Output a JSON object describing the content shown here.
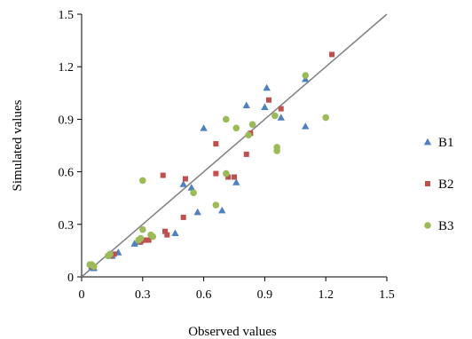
{
  "chart_data": {
    "type": "scatter",
    "xlabel": "Observed values",
    "ylabel": "Simulated values",
    "xlim": [
      0,
      1.5
    ],
    "ylim": [
      0,
      1.5
    ],
    "x_ticks": [
      "0",
      "0.3",
      "0.6",
      "0.9",
      "1.2",
      "1.5"
    ],
    "y_ticks": [
      "0",
      "0.3",
      "0.6",
      "0.9",
      "1.2",
      "1.5"
    ],
    "grid": false,
    "legend_position": "right",
    "reference_line": {
      "from": [
        0,
        0
      ],
      "to": [
        1.5,
        1.5
      ],
      "color": "#808080"
    },
    "series": [
      {
        "name": "B1",
        "marker": "triangle",
        "color": "#4f81bd",
        "points": [
          [
            0.05,
            0.06
          ],
          [
            0.06,
            0.05
          ],
          [
            0.15,
            0.12
          ],
          [
            0.18,
            0.14
          ],
          [
            0.26,
            0.19
          ],
          [
            0.28,
            0.2
          ],
          [
            0.29,
            0.21
          ],
          [
            0.46,
            0.25
          ],
          [
            0.5,
            0.53
          ],
          [
            0.54,
            0.51
          ],
          [
            0.57,
            0.37
          ],
          [
            0.6,
            0.85
          ],
          [
            0.69,
            0.38
          ],
          [
            0.76,
            0.54
          ],
          [
            0.81,
            0.98
          ],
          [
            0.91,
            1.08
          ],
          [
            0.9,
            0.97
          ],
          [
            0.98,
            0.91
          ],
          [
            1.1,
            1.13
          ],
          [
            1.1,
            0.86
          ]
        ]
      },
      {
        "name": "B2",
        "marker": "square",
        "color": "#c0504d",
        "points": [
          [
            0.05,
            0.06
          ],
          [
            0.14,
            0.12
          ],
          [
            0.16,
            0.13
          ],
          [
            0.29,
            0.2
          ],
          [
            0.31,
            0.21
          ],
          [
            0.33,
            0.21
          ],
          [
            0.4,
            0.58
          ],
          [
            0.41,
            0.26
          ],
          [
            0.42,
            0.24
          ],
          [
            0.5,
            0.34
          ],
          [
            0.51,
            0.56
          ],
          [
            0.66,
            0.76
          ],
          [
            0.66,
            0.59
          ],
          [
            0.72,
            0.57
          ],
          [
            0.75,
            0.57
          ],
          [
            0.81,
            0.7
          ],
          [
            0.83,
            0.82
          ],
          [
            0.92,
            1.01
          ],
          [
            0.98,
            0.96
          ],
          [
            1.23,
            1.27
          ]
        ]
      },
      {
        "name": "B3",
        "marker": "circle",
        "color": "#9bbb59",
        "points": [
          [
            0.04,
            0.07
          ],
          [
            0.05,
            0.07
          ],
          [
            0.06,
            0.06
          ],
          [
            0.13,
            0.12
          ],
          [
            0.14,
            0.13
          ],
          [
            0.28,
            0.21
          ],
          [
            0.29,
            0.22
          ],
          [
            0.3,
            0.55
          ],
          [
            0.3,
            0.27
          ],
          [
            0.34,
            0.24
          ],
          [
            0.35,
            0.23
          ],
          [
            0.55,
            0.48
          ],
          [
            0.66,
            0.41
          ],
          [
            0.71,
            0.9
          ],
          [
            0.71,
            0.59
          ],
          [
            0.76,
            0.85
          ],
          [
            0.82,
            0.81
          ],
          [
            0.84,
            0.87
          ],
          [
            0.95,
            0.92
          ],
          [
            0.96,
            0.74
          ],
          [
            0.96,
            0.72
          ],
          [
            1.1,
            1.15
          ],
          [
            1.2,
            0.91
          ]
        ]
      }
    ]
  }
}
